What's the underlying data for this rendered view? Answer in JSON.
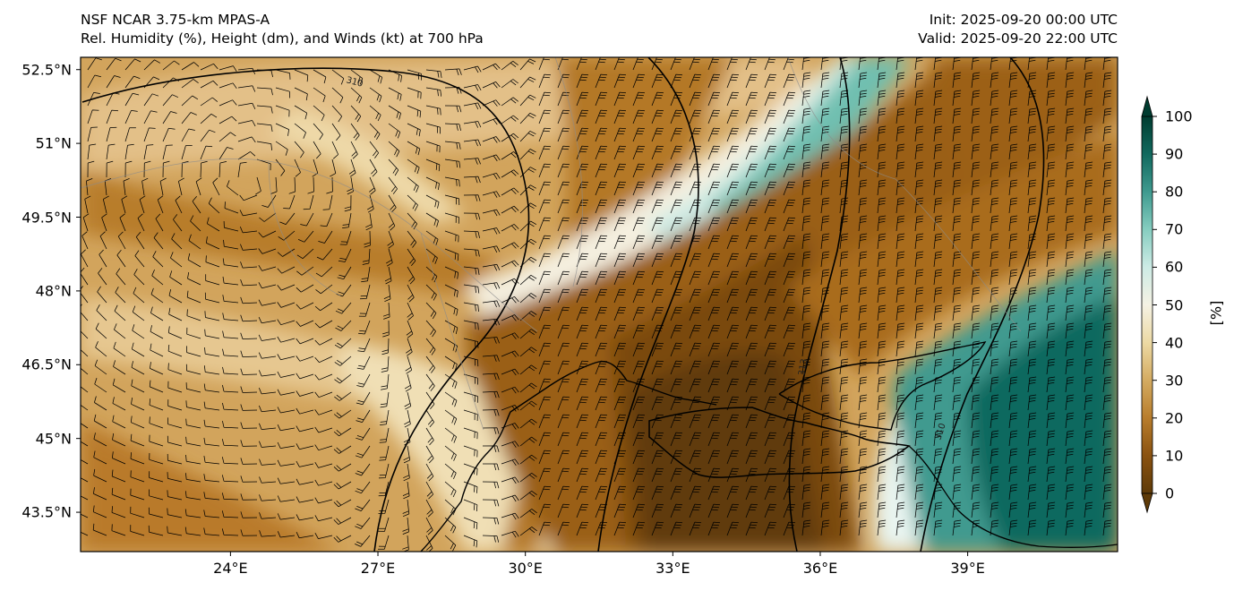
{
  "header": {
    "model": "NSF NCAR 3.75-km MPAS-A",
    "fields": "Rel. Humidity (%), Height (dm), and Winds (kt) at 700 hPa",
    "init": "Init: 2025-09-20 00:00 UTC",
    "valid": "Valid: 2025-09-20 22:00 UTC"
  },
  "map": {
    "lat_labels": [
      "52.5°N",
      "51°N",
      "49.5°N",
      "48°N",
      "46.5°N",
      "45°N",
      "43.5°N"
    ],
    "lat_values": [
      52.5,
      51,
      49.5,
      48,
      46.5,
      45,
      43.5
    ],
    "lon_labels": [
      "24°E",
      "27°E",
      "30°E",
      "33°E",
      "36°E",
      "39°E"
    ],
    "lon_values": [
      24,
      27,
      30,
      33,
      36,
      39
    ],
    "extent": {
      "lon_min": 20.95,
      "lon_max": 42.05,
      "lat_min": 42.7,
      "lat_max": 52.75
    },
    "contour_labels": [
      "310",
      "313",
      "310"
    ],
    "wind_units": "kt",
    "height_units": "dm",
    "pressure_level": "700 hPa"
  },
  "colorbar": {
    "ticks": [
      "0",
      "10",
      "20",
      "30",
      "40",
      "50",
      "60",
      "70",
      "80",
      "90",
      "100"
    ],
    "label": "[%]",
    "colors": [
      "#5e3a07",
      "#8a5210",
      "#b87d2c",
      "#d4ab61",
      "#ecd9a4",
      "#f5f2e4",
      "#cdebe5",
      "#86cdc0",
      "#3f9a8f",
      "#11695e",
      "#003c30"
    ]
  }
}
